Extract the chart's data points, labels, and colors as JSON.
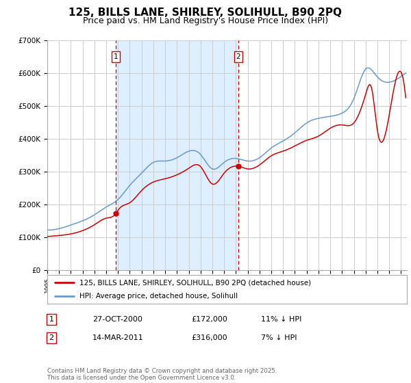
{
  "title": "125, BILLS LANE, SHIRLEY, SOLIHULL, B90 2PQ",
  "subtitle": "Price paid vs. HM Land Registry's House Price Index (HPI)",
  "title_fontsize": 11,
  "subtitle_fontsize": 9,
  "legend_label_red": "125, BILLS LANE, SHIRLEY, SOLIHULL, B90 2PQ (detached house)",
  "legend_label_blue": "HPI: Average price, detached house, Solihull",
  "footnote": "Contains HM Land Registry data © Crown copyright and database right 2025.\nThis data is licensed under the Open Government Licence v3.0.",
  "marker1_date_x": 2000.82,
  "marker1_label": "1",
  "marker1_date_str": "27-OCT-2000",
  "marker1_price": "£172,000",
  "marker1_hpi": "11% ↓ HPI",
  "marker2_date_x": 2011.2,
  "marker2_label": "2",
  "marker2_date_str": "14-MAR-2011",
  "marker2_price": "£316,000",
  "marker2_hpi": "7% ↓ HPI",
  "red_color": "#cc0000",
  "blue_color": "#6699cc",
  "shade_color": "#ddeeff",
  "grid_color": "#cccccc",
  "background_color": "#ffffff",
  "ylim": [
    0,
    700000
  ],
  "xlim_start": 1995,
  "xlim_end": 2025.5,
  "ytick_labels": [
    "£0",
    "£100K",
    "£200K",
    "£300K",
    "£400K",
    "£500K",
    "£600K",
    "£700K"
  ],
  "ytick_values": [
    0,
    100000,
    200000,
    300000,
    400000,
    500000,
    600000,
    700000
  ],
  "hpi_years": [
    1995,
    1996,
    1997,
    1998,
    1999,
    2000,
    2001,
    2002,
    2003,
    2004,
    2005,
    2006,
    2007,
    2008,
    2009,
    2010,
    2011,
    2012,
    2013,
    2014,
    2015,
    2016,
    2017,
    2018,
    2019,
    2020,
    2021,
    2022,
    2023,
    2024,
    2025.4
  ],
  "hpi_values": [
    122000,
    126000,
    137000,
    150000,
    168000,
    192000,
    215000,
    258000,
    295000,
    328000,
    332000,
    342000,
    362000,
    352000,
    308000,
    328000,
    340000,
    332000,
    342000,
    372000,
    393000,
    418000,
    448000,
    462000,
    468000,
    478000,
    522000,
    612000,
    588000,
    572000,
    600000
  ],
  "red_years": [
    1995,
    1996,
    1997,
    1998,
    1999,
    2000,
    2000.82,
    2001,
    2002,
    2003,
    2004,
    2005,
    2006,
    2007,
    2008,
    2009,
    2010,
    2011.2,
    2012,
    2013,
    2014,
    2015,
    2016,
    2017,
    2018,
    2019,
    2020,
    2021,
    2022,
    2022.5,
    2023,
    2024,
    2025.4
  ],
  "red_values": [
    102000,
    105000,
    110000,
    120000,
    138000,
    158000,
    172000,
    182000,
    205000,
    242000,
    268000,
    278000,
    290000,
    310000,
    315000,
    262000,
    295000,
    316000,
    308000,
    320000,
    348000,
    362000,
    378000,
    395000,
    408000,
    432000,
    442000,
    448000,
    535000,
    555000,
    425000,
    472000,
    525000
  ]
}
